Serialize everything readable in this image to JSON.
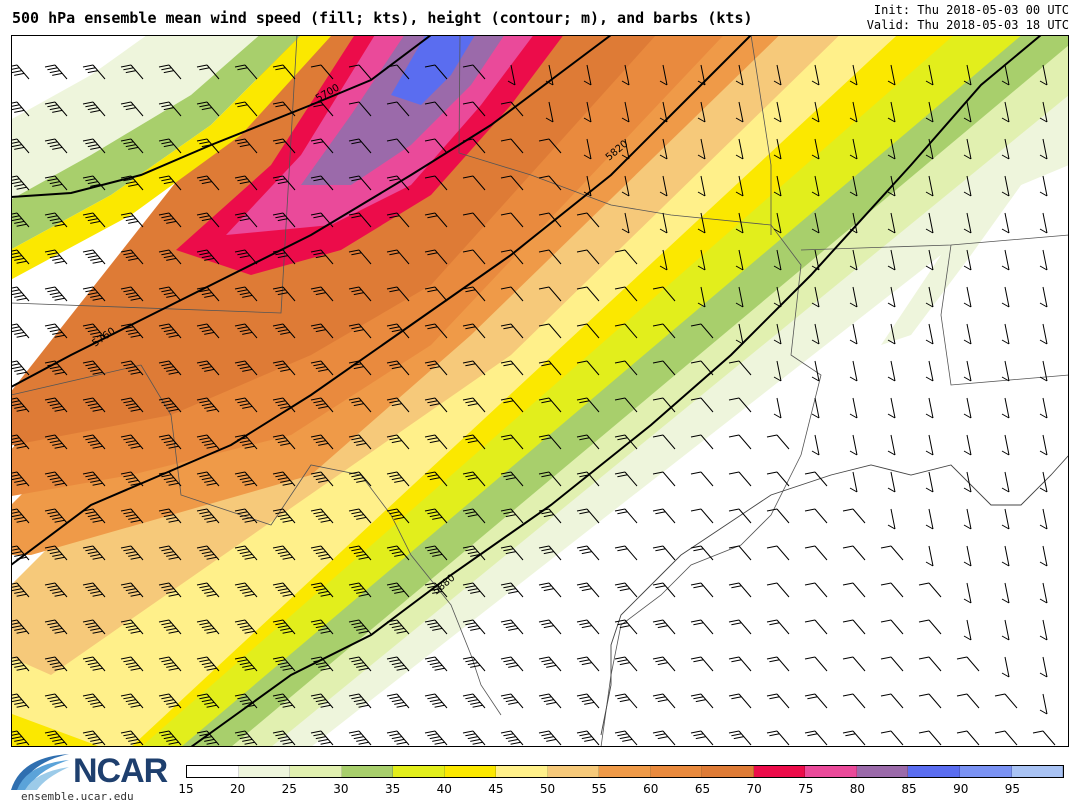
{
  "header": {
    "title": "500 hPa ensemble mean wind speed (fill; kts), height (contour; m), and barbs (kts)",
    "init": "Init: Thu 2018-05-03 00 UTC",
    "valid": "Valid: Thu 2018-05-03 18 UTC"
  },
  "map": {
    "contour_labels": [
      "5700",
      "5760",
      "5820",
      "5880"
    ]
  },
  "colorbar": {
    "colors": [
      "#ffffff",
      "#eef5dc",
      "#e1f0b0",
      "#a8cf6c",
      "#e2ee1c",
      "#fbe800",
      "#fff08a",
      "#f6c97a",
      "#ef9a48",
      "#e98a3e",
      "#de7b36",
      "#ec0c4a",
      "#ea4a9a",
      "#9b6aaa",
      "#5a6df0",
      "#7a92f3",
      "#a9c3f4"
    ],
    "ticks": [
      "15",
      "20",
      "25",
      "30",
      "35",
      "40",
      "45",
      "50",
      "55",
      "60",
      "65",
      "70",
      "75",
      "80",
      "85",
      "90",
      "95"
    ]
  },
  "logo": {
    "text": "NCAR",
    "url": "ensemble.ucar.edu"
  }
}
